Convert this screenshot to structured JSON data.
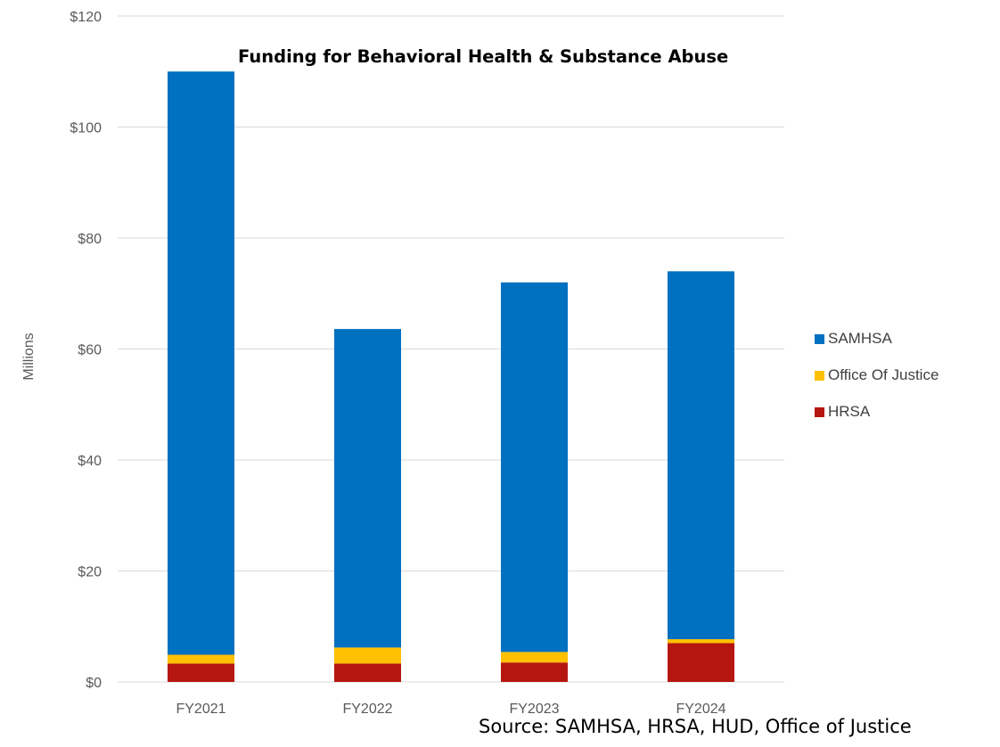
{
  "chart_data": {
    "type": "bar",
    "stacked": true,
    "title": "Funding for Behavioral Health & Substance Abuse",
    "ylabel": "Millions",
    "xlabel": "",
    "source_note": "Source:  SAMHSA, HRSA, HUD, Office of Justice",
    "categories": [
      "FY2021",
      "FY2022",
      "FY2023",
      "FY2024"
    ],
    "series": [
      {
        "name": "HRSA",
        "color": "#B5160F",
        "values": [
          3.3,
          3.3,
          3.5,
          7.0
        ]
      },
      {
        "name": "Office Of Justice",
        "color": "#FFC000",
        "values": [
          1.6,
          2.9,
          1.9,
          0.7
        ]
      },
      {
        "name": "SAMHSA",
        "color": "#0070C0",
        "values": [
          105.1,
          57.4,
          66.6,
          66.3
        ]
      }
    ],
    "legend_order": [
      "SAMHSA",
      "Office Of Justice",
      "HRSA"
    ],
    "legend_position": "right",
    "ylim": [
      0,
      120
    ],
    "yticks": [
      0,
      20,
      40,
      60,
      80,
      100,
      120
    ],
    "ytick_labels": [
      "$0",
      "$20",
      "$40",
      "$60",
      "$80",
      "$100",
      "$120"
    ],
    "grid": true,
    "gridline_color": "#D9D9D9"
  }
}
